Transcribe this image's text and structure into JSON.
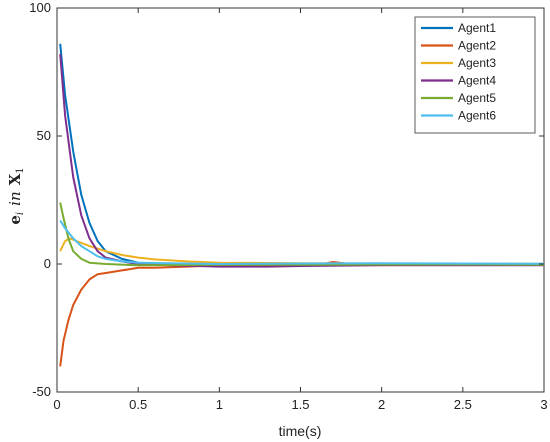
{
  "chart_data": {
    "type": "line",
    "xlabel": "time(s)",
    "ylabel": {
      "base": "e",
      "sub": "i",
      "mid": "in",
      "var": "X",
      "var_sub": "1"
    },
    "xlim": [
      0,
      3
    ],
    "ylim": [
      -50,
      100
    ],
    "xticks": [
      0,
      0.5,
      1,
      1.5,
      2,
      2.5,
      3
    ],
    "xtick_labels": [
      "0",
      "0.5",
      "1",
      "1.5",
      "2",
      "2.5",
      "3"
    ],
    "yticks": [
      -50,
      0,
      50,
      100
    ],
    "ytick_labels": [
      "-50",
      "0",
      "50",
      "100"
    ],
    "grid": false,
    "legend_position": "top-right",
    "series": [
      {
        "name": "Agent1",
        "color": "#0072BD",
        "points": [
          [
            0.02,
            86
          ],
          [
            0.05,
            66
          ],
          [
            0.1,
            44
          ],
          [
            0.15,
            27
          ],
          [
            0.2,
            16
          ],
          [
            0.25,
            9
          ],
          [
            0.3,
            5
          ],
          [
            0.4,
            2
          ],
          [
            0.5,
            0.5
          ],
          [
            0.7,
            0
          ],
          [
            1,
            -0.5
          ],
          [
            1.5,
            -0.3
          ],
          [
            2,
            0
          ],
          [
            2.5,
            -0.2
          ],
          [
            3,
            -0.3
          ]
        ]
      },
      {
        "name": "Agent2",
        "color": "#D95319",
        "points": [
          [
            0.02,
            -40
          ],
          [
            0.04,
            -30
          ],
          [
            0.07,
            -22
          ],
          [
            0.1,
            -16
          ],
          [
            0.15,
            -10
          ],
          [
            0.2,
            -6
          ],
          [
            0.25,
            -4
          ],
          [
            0.3,
            -3.5
          ],
          [
            0.4,
            -2.5
          ],
          [
            0.5,
            -1.5
          ],
          [
            0.6,
            -1.5
          ],
          [
            0.8,
            -1
          ],
          [
            1,
            -0.5
          ],
          [
            1.3,
            -0.7
          ],
          [
            1.6,
            -0.5
          ],
          [
            1.7,
            0.8
          ],
          [
            1.8,
            0
          ],
          [
            2,
            -0.3
          ],
          [
            2.5,
            -0.2
          ],
          [
            3,
            -0.3
          ]
        ]
      },
      {
        "name": "Agent3",
        "color": "#EDB120",
        "points": [
          [
            0.02,
            5
          ],
          [
            0.05,
            9
          ],
          [
            0.08,
            10
          ],
          [
            0.12,
            9
          ],
          [
            0.2,
            7
          ],
          [
            0.3,
            5
          ],
          [
            0.4,
            3.5
          ],
          [
            0.5,
            2.5
          ],
          [
            0.6,
            1.8
          ],
          [
            0.8,
            1
          ],
          [
            1,
            0.5
          ],
          [
            1.5,
            0.3
          ],
          [
            2,
            0.2
          ],
          [
            2.5,
            0.1
          ],
          [
            3,
            0.1
          ]
        ]
      },
      {
        "name": "Agent4",
        "color": "#7E2F8E",
        "points": [
          [
            0.02,
            82
          ],
          [
            0.05,
            58
          ],
          [
            0.1,
            34
          ],
          [
            0.15,
            19
          ],
          [
            0.2,
            10
          ],
          [
            0.25,
            5
          ],
          [
            0.3,
            2.5
          ],
          [
            0.4,
            1
          ],
          [
            0.5,
            0
          ],
          [
            0.7,
            -0.5
          ],
          [
            1,
            -1
          ],
          [
            1.3,
            -1
          ],
          [
            1.5,
            -0.8
          ],
          [
            2,
            -0.5
          ],
          [
            2.5,
            -0.5
          ],
          [
            3,
            -0.5
          ]
        ]
      },
      {
        "name": "Agent5",
        "color": "#77AC30",
        "points": [
          [
            0.02,
            24
          ],
          [
            0.04,
            18
          ],
          [
            0.07,
            10
          ],
          [
            0.1,
            5
          ],
          [
            0.15,
            2
          ],
          [
            0.2,
            0.5
          ],
          [
            0.3,
            0
          ],
          [
            0.5,
            -0.5
          ],
          [
            1,
            -0.3
          ],
          [
            1.5,
            -0.3
          ],
          [
            2,
            -0.2
          ],
          [
            2.5,
            -0.2
          ],
          [
            3,
            -0.3
          ]
        ]
      },
      {
        "name": "Agent6",
        "color": "#4DBEEE",
        "points": [
          [
            0.02,
            17
          ],
          [
            0.05,
            14
          ],
          [
            0.1,
            10
          ],
          [
            0.15,
            7
          ],
          [
            0.2,
            5
          ],
          [
            0.25,
            3
          ],
          [
            0.3,
            2
          ],
          [
            0.4,
            1
          ],
          [
            0.5,
            0.5
          ],
          [
            1,
            0
          ],
          [
            1.5,
            0.2
          ],
          [
            2,
            0.3
          ],
          [
            2.5,
            0.2
          ],
          [
            3,
            0.1
          ]
        ]
      }
    ]
  }
}
